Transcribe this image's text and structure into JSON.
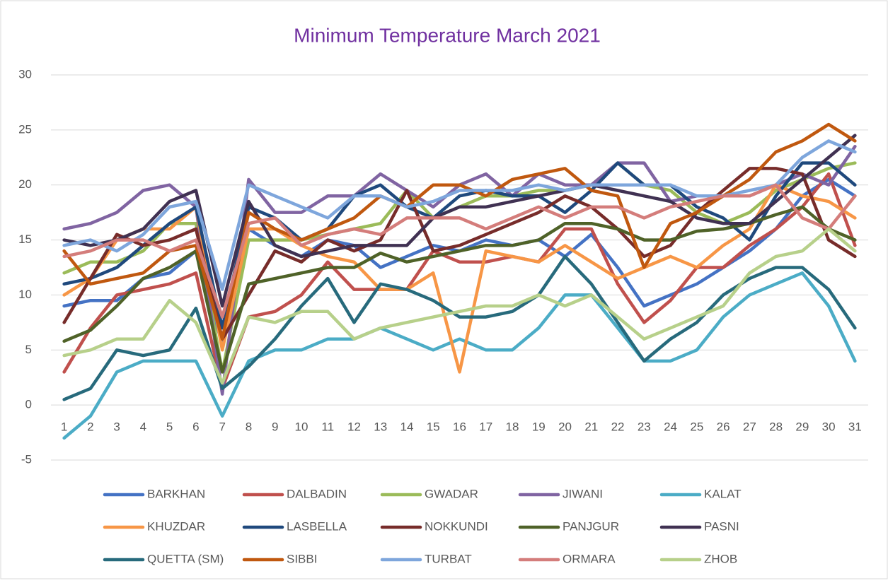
{
  "chart_data": {
    "type": "line",
    "title": "Minimum Temperature March 2021",
    "categories": [
      "1",
      "2",
      "3",
      "4",
      "5",
      "6",
      "7",
      "8",
      "9",
      "10",
      "11",
      "12",
      "13",
      "14",
      "15",
      "16",
      "17",
      "18",
      "19",
      "20",
      "21",
      "22",
      "23",
      "24",
      "25",
      "26",
      "27",
      "28",
      "29",
      "30",
      "31"
    ],
    "ylim": [
      -5,
      30
    ],
    "yticks": [
      -5,
      0,
      5,
      10,
      15,
      20,
      25,
      30
    ],
    "grid": true,
    "legend": "bottom",
    "series": [
      {
        "name": "BARKHAN",
        "color": "#4472c4",
        "values": [
          9,
          9.5,
          9.5,
          11.5,
          12,
          14,
          5.5,
          16,
          14.5,
          13.5,
          15,
          14.5,
          12.5,
          13.5,
          14.5,
          14,
          15,
          14.5,
          15,
          13.5,
          15.5,
          12.5,
          9,
          10,
          11,
          12.5,
          14,
          16,
          19,
          20.5,
          19
        ]
      },
      {
        "name": "DALBADIN",
        "color": "#c0504d",
        "values": [
          3,
          7,
          10,
          10.5,
          11,
          12,
          1.5,
          8,
          8.5,
          10,
          13,
          10.5,
          10.5,
          10.5,
          14,
          13,
          13,
          13.5,
          13,
          16,
          16,
          11,
          7.5,
          9.5,
          12.5,
          12.5,
          14.5,
          16,
          18,
          21,
          14.5
        ]
      },
      {
        "name": "GWADAR",
        "color": "#9bbb59",
        "values": [
          12,
          13,
          13,
          14,
          16.5,
          16.5,
          3,
          15,
          15,
          15,
          15.5,
          16,
          16.5,
          19.5,
          17,
          18,
          19,
          19,
          19.5,
          19.5,
          20,
          22,
          20,
          19.5,
          17.5,
          16.5,
          17.5,
          19.5,
          20.5,
          21.5,
          22
        ]
      },
      {
        "name": "JIWANI",
        "color": "#8064a2",
        "values": [
          16,
          16.5,
          17.5,
          19.5,
          20,
          18,
          1,
          20.5,
          17.5,
          17.5,
          19,
          19,
          21,
          19.5,
          18,
          20,
          21,
          19,
          21,
          20,
          20,
          22,
          22,
          18.5,
          19,
          19,
          19,
          20,
          21,
          20,
          23.5
        ]
      },
      {
        "name": "KALAT",
        "color": "#4bacc6",
        "values": [
          -3,
          -1,
          3,
          4,
          4,
          4,
          -1,
          4,
          5,
          5,
          6,
          6,
          7,
          6,
          5,
          6,
          5,
          5,
          7,
          10,
          10,
          7,
          4,
          4,
          5,
          8,
          10,
          11,
          12,
          9,
          4
        ]
      },
      {
        "name": "KHUZDAR",
        "color": "#f79646",
        "values": [
          10,
          11.5,
          15,
          16,
          16,
          18,
          5,
          16,
          16,
          14.5,
          13.5,
          13,
          10.5,
          10.5,
          12,
          3,
          14,
          13.5,
          13,
          14.5,
          13,
          11.5,
          12.5,
          13.5,
          12.5,
          14.5,
          16,
          20,
          19,
          18.5,
          17
        ]
      },
      {
        "name": "LASBELLA",
        "color": "#1f497d",
        "values": [
          11,
          11.5,
          12.5,
          14.5,
          16.5,
          18,
          7,
          18,
          17,
          15,
          16,
          19,
          20,
          18,
          17,
          19,
          19.5,
          19,
          19,
          17.5,
          19.5,
          22,
          20,
          20,
          18,
          17,
          15,
          19,
          22,
          22,
          20
        ]
      },
      {
        "name": "NOKKUNDI",
        "color": "#772c2a",
        "values": [
          7.5,
          11.5,
          15.5,
          14.5,
          15,
          16,
          6,
          10,
          14,
          13,
          15,
          14,
          15,
          19.5,
          14,
          14.5,
          15.5,
          16.5,
          17.5,
          19,
          18,
          16,
          13.5,
          14.5,
          17.5,
          19.5,
          21.5,
          21.5,
          21,
          15,
          13.5
        ]
      },
      {
        "name": "PANJGUR",
        "color": "#4f6228",
        "values": [
          5.8,
          6.8,
          9,
          11.5,
          12.5,
          14,
          3,
          11,
          11.5,
          12,
          12.5,
          12.5,
          13.8,
          13,
          13.5,
          14,
          14.5,
          14.5,
          15,
          16.5,
          16.5,
          16,
          15,
          15,
          15.8,
          16,
          16.5,
          17.3,
          18,
          16,
          15
        ]
      },
      {
        "name": "PASNI",
        "color": "#403152",
        "values": [
          15,
          14.5,
          15,
          16,
          18.5,
          19.5,
          9,
          18.5,
          14.5,
          13.5,
          14,
          14.5,
          14.5,
          14.5,
          17,
          18,
          18,
          18.5,
          19,
          19.5,
          20,
          19.5,
          19,
          18.5,
          17,
          16.5,
          16.5,
          18.5,
          20.5,
          22.5,
          24.5
        ]
      },
      {
        "name": "QUETTA (SM)",
        "color": "#276a7c",
        "values": [
          0.5,
          1.5,
          5,
          4.5,
          5,
          8.8,
          1.5,
          3.5,
          6,
          9,
          11.5,
          7.5,
          11,
          10.5,
          9.5,
          8,
          8,
          8.5,
          10,
          13.5,
          11,
          7.5,
          4,
          6,
          7.5,
          10,
          11.5,
          12.5,
          12.5,
          10.5,
          7
        ]
      },
      {
        "name": "SIBBI",
        "color": "#c0580f",
        "values": [
          14,
          11,
          11.5,
          12,
          14,
          14.5,
          6,
          17.5,
          16,
          15,
          16,
          17,
          19,
          18,
          20,
          20,
          19,
          20.5,
          21,
          21.5,
          19.5,
          19,
          12.5,
          16.5,
          17.5,
          19,
          20.5,
          23,
          24,
          25.5,
          24
        ]
      },
      {
        "name": "TURBAT",
        "color": "#7ea6dc",
        "values": [
          14.5,
          15,
          14,
          15.5,
          18,
          18.5,
          10.5,
          20,
          19,
          18,
          17,
          19,
          19,
          18,
          18.5,
          19.5,
          19.5,
          19.5,
          20,
          19.5,
          20,
          20,
          20,
          20,
          19,
          19,
          19.5,
          20,
          22.5,
          24,
          23
        ]
      },
      {
        "name": "ORMARA",
        "color": "#d47d7b",
        "values": [
          13.5,
          14,
          15,
          15,
          14,
          15,
          8,
          16.5,
          17,
          14.5,
          15.5,
          16,
          15.5,
          17,
          17,
          17,
          16,
          17,
          18,
          17,
          18,
          18,
          17,
          18,
          18.5,
          19,
          19,
          20,
          17,
          16,
          19
        ]
      },
      {
        "name": "ZHOB",
        "color": "#b7d08a",
        "values": [
          4.5,
          5,
          6,
          6,
          9.5,
          7.5,
          2,
          8,
          7.5,
          8.5,
          8.5,
          6,
          7,
          7.5,
          8,
          8.5,
          9,
          9,
          10,
          9,
          10,
          8,
          6,
          7,
          8,
          9,
          12,
          13.5,
          14,
          16,
          14
        ]
      }
    ]
  }
}
